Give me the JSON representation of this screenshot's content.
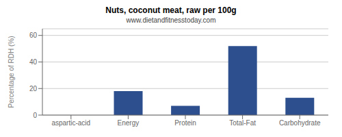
{
  "chart_data": {
    "type": "bar",
    "title": "Nuts, coconut meat, raw per 100g",
    "subtitle": "www.dietandfitnesstoday.com",
    "categories": [
      "aspartic-acid",
      "Energy",
      "Protein",
      "Total-Fat",
      "Carbohydrate"
    ],
    "values": [
      0,
      18,
      7,
      52,
      13
    ],
    "color": "#2d4f8e",
    "ylabel": "Percentage of RDH (%)",
    "ylim": [
      0,
      65
    ],
    "yticks": [
      0,
      20,
      40,
      60
    ],
    "grid": true
  }
}
